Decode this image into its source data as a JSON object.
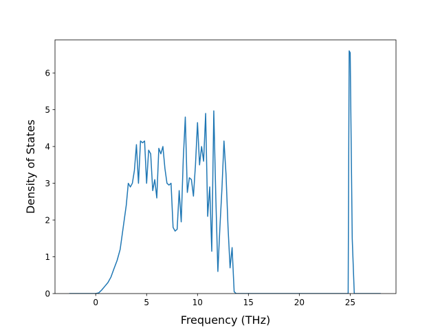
{
  "chart_data": {
    "type": "line",
    "title": "",
    "xlabel": "Frequency (THz)",
    "ylabel": "Density of States",
    "xlim": [
      -4.0,
      29.5
    ],
    "ylim": [
      0,
      6.9
    ],
    "x_ticks": [
      0,
      5,
      10,
      15,
      20,
      25
    ],
    "y_ticks": [
      0,
      1,
      2,
      3,
      4,
      5,
      6
    ],
    "x_tick_labels": [
      "0",
      "5",
      "10",
      "15",
      "20",
      "25"
    ],
    "y_tick_labels": [
      "0",
      "1",
      "2",
      "3",
      "4",
      "5",
      "6"
    ],
    "grid": false,
    "legend": "none",
    "series": [
      {
        "color": "#1f77b4",
        "x": [
          -2.6,
          -1.0,
          0.0,
          0.3,
          0.6,
          0.9,
          1.2,
          1.5,
          1.8,
          2.1,
          2.4,
          2.6,
          2.8,
          3.0,
          3.2,
          3.4,
          3.6,
          3.8,
          4.0,
          4.2,
          4.4,
          4.6,
          4.8,
          5.0,
          5.2,
          5.4,
          5.6,
          5.8,
          6.0,
          6.2,
          6.4,
          6.6,
          6.8,
          7.0,
          7.2,
          7.4,
          7.6,
          7.8,
          8.0,
          8.2,
          8.4,
          8.6,
          8.8,
          9.0,
          9.2,
          9.4,
          9.6,
          9.8,
          10.0,
          10.2,
          10.4,
          10.6,
          10.8,
          11.0,
          11.2,
          11.4,
          11.6,
          11.8,
          12.0,
          12.2,
          12.4,
          12.6,
          12.8,
          13.0,
          13.2,
          13.4,
          13.6,
          13.8,
          14.0,
          14.5,
          15.0,
          20.0,
          24.0,
          24.8,
          24.9,
          25.0,
          25.2,
          25.4,
          25.6,
          27.0,
          28.0
        ],
        "y": [
          0.0,
          0.0,
          0.0,
          0.02,
          0.1,
          0.2,
          0.3,
          0.45,
          0.68,
          0.9,
          1.2,
          1.6,
          2.0,
          2.4,
          3.0,
          2.9,
          3.0,
          3.35,
          4.05,
          3.0,
          4.15,
          4.1,
          4.15,
          3.0,
          3.9,
          3.8,
          2.8,
          3.1,
          2.6,
          3.95,
          3.8,
          4.0,
          3.4,
          3.0,
          2.95,
          3.0,
          1.8,
          1.7,
          1.75,
          2.8,
          1.95,
          3.65,
          4.8,
          2.75,
          3.15,
          3.1,
          2.65,
          3.5,
          4.65,
          3.5,
          4.0,
          3.6,
          4.9,
          2.1,
          2.9,
          1.15,
          4.97,
          2.6,
          0.6,
          1.8,
          2.85,
          4.15,
          3.25,
          1.8,
          0.7,
          1.25,
          0.05,
          0.0,
          0.0,
          0.0,
          0.0,
          0.0,
          0.0,
          0.0,
          6.6,
          6.55,
          1.5,
          0.0,
          0.0,
          0.0,
          0.0
        ]
      }
    ]
  }
}
